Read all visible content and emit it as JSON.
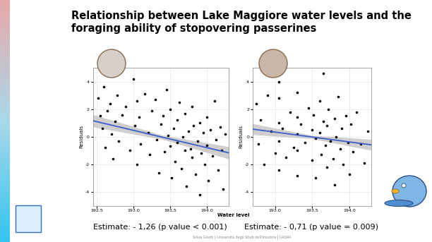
{
  "title": "Relationship between Lake Maggiore water levels and the foraging ability of stopovering passerines",
  "x_label": "Water level",
  "footer": "Silvia Giunti | Università degli Studi dell'Insubria | UASRA",
  "chart_data": [
    {
      "type": "scatter",
      "y_label": "Residuals",
      "color": "#000000",
      "annotation": "Estimate: - 1,26 (p value < 0.001)",
      "xlim": [
        192.45,
        194.3
      ],
      "xticks": [
        192.5,
        193.0,
        193.5,
        194.0
      ],
      "ylim": [
        -5,
        5
      ],
      "yticks": [
        -4,
        -2,
        0,
        2,
        4
      ],
      "grid": true,
      "x": [
        192.52,
        192.55,
        192.58,
        192.6,
        192.62,
        192.65,
        192.68,
        192.7,
        192.72,
        192.75,
        192.78,
        192.8,
        192.85,
        192.9,
        192.95,
        193.0,
        193.02,
        193.05,
        193.05,
        193.08,
        193.1,
        193.15,
        193.2,
        193.22,
        193.25,
        193.3,
        193.32,
        193.35,
        193.38,
        193.4,
        193.42,
        193.45,
        193.47,
        193.5,
        193.5,
        193.52,
        193.55,
        193.57,
        193.6,
        193.6,
        193.62,
        193.65,
        193.67,
        193.7,
        193.7,
        193.72,
        193.75,
        193.78,
        193.8,
        193.8,
        193.82,
        193.85,
        193.87,
        193.9,
        193.9,
        193.92,
        193.95,
        193.97,
        194.0,
        194.0,
        194.02,
        194.05,
        194.08,
        194.1,
        194.12,
        194.15,
        194.18,
        194.2,
        194.22,
        194.25
      ],
      "values": [
        2.8,
        1.5,
        0.6,
        3.6,
        -0.8,
        1.9,
        2.4,
        0.2,
        -1.6,
        1.1,
        3.0,
        -0.3,
        1.6,
        2.2,
        -1.0,
        4.2,
        0.8,
        -2.0,
        2.6,
        1.4,
        -0.5,
        3.1,
        0.3,
        -1.3,
        1.9,
        2.7,
        -0.2,
        -2.6,
        0.9,
        1.5,
        -1.1,
        3.4,
        0.1,
        -0.7,
        2.0,
        -3.0,
        0.6,
        -1.8,
        1.2,
        -0.4,
        2.5,
        -2.3,
        0.0,
        -1.0,
        1.7,
        -3.6,
        0.4,
        -0.9,
        2.2,
        -1.5,
        0.8,
        -2.7,
        -0.3,
        1.0,
        -4.2,
        -1.2,
        0.3,
        -2.0,
        1.4,
        -0.6,
        -3.2,
        0.5,
        -1.4,
        2.6,
        -0.2,
        -2.4,
        0.7,
        -1.0,
        -3.8,
        0.2
      ],
      "fit": {
        "x": [
          192.45,
          193.4,
          194.3
        ],
        "values": [
          1.16,
          -0.04,
          -1.17
        ],
        "band_low": [
          0.71,
          -0.19,
          -1.62
        ],
        "band_high": [
          1.61,
          0.11,
          -0.72
        ],
        "color": "#3a5fcd"
      }
    },
    {
      "type": "scatter",
      "y_label": "Residuals",
      "color": "#000000",
      "annotation": "Estimate: - 0,71 (p value = 0.009)",
      "xlim": [
        192.7,
        194.3
      ],
      "xticks": [
        193.0,
        193.5,
        194.0
      ],
      "ylim": [
        -5,
        5
      ],
      "yticks": [
        -4,
        -2,
        0,
        2,
        4
      ],
      "grid": true,
      "x": [
        192.75,
        192.78,
        192.8,
        192.85,
        192.9,
        192.95,
        193.0,
        193.05,
        193.05,
        193.05,
        193.05,
        193.05,
        193.1,
        193.15,
        193.2,
        193.25,
        193.3,
        193.3,
        193.3,
        193.3,
        193.3,
        193.35,
        193.4,
        193.45,
        193.5,
        193.5,
        193.52,
        193.55,
        193.55,
        193.6,
        193.6,
        193.62,
        193.65,
        193.65,
        193.68,
        193.7,
        193.7,
        193.72,
        193.75,
        193.78,
        193.8,
        193.8,
        193.82,
        193.85,
        193.88,
        193.9,
        193.92,
        193.95,
        193.98,
        194.0,
        194.02,
        194.05,
        194.1,
        194.15,
        194.2,
        194.25
      ],
      "values": [
        2.4,
        -0.5,
        1.2,
        -2.0,
        3.0,
        0.4,
        -1.2,
        2.8,
        1.0,
        -0.3,
        -2.4,
        4.0,
        0.6,
        -1.5,
        1.8,
        -0.8,
        3.2,
        1.4,
        0.2,
        -1.0,
        -2.8,
        0.9,
        -0.4,
        2.1,
        -1.7,
        0.5,
        1.6,
        -0.1,
        -3.0,
        2.6,
        0.3,
        -1.3,
        4.6,
        1.1,
        -0.6,
        -2.2,
        0.8,
        2.0,
        -0.3,
        -1.6,
        1.3,
        -3.5,
        0.0,
        2.9,
        -0.9,
        0.6,
        -2.0,
        1.5,
        -0.4,
        -2.7,
        0.9,
        -1.1,
        1.8,
        -0.5,
        -1.9,
        0.4
      ],
      "fit": {
        "x": [
          192.7,
          193.5,
          194.3
        ],
        "values": [
          0.55,
          -0.02,
          -0.59
        ],
        "band_low": [
          0.15,
          -0.14,
          -0.99
        ],
        "band_high": [
          0.95,
          0.1,
          -0.19
        ],
        "color": "#3a5fcd"
      }
    }
  ]
}
